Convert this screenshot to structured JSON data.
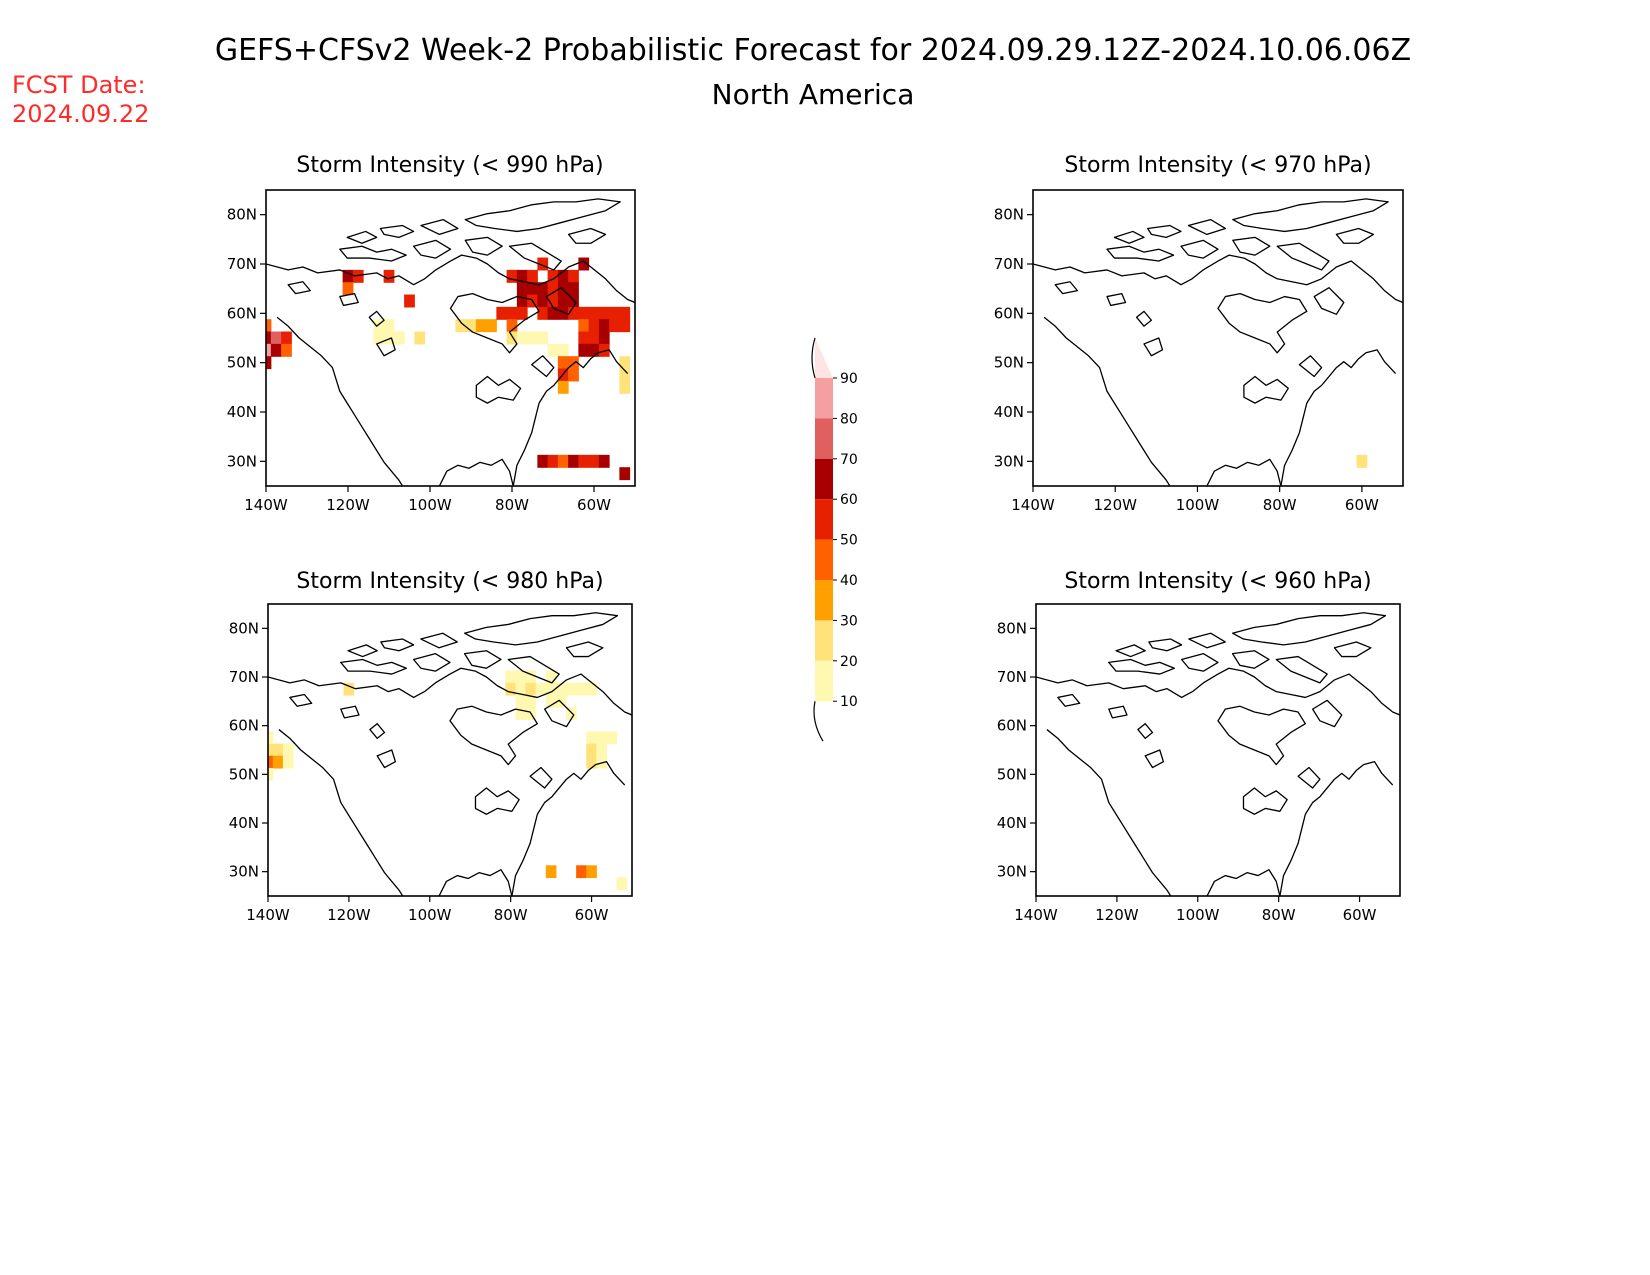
{
  "header": {
    "title": "GEFS+CFSv2 Week-2 Probabilistic Forecast for 2024.09.29.12Z-2024.10.06.06Z",
    "subtitle": "North America",
    "fcst_label": "FCST Date:",
    "fcst_date": "2024.09.22"
  },
  "colors": {
    "fcst_text": "#ff2a2a",
    "levels": [
      "#fff8b0",
      "#ffe27a",
      "#ffa000",
      "#ff6000",
      "#e62000",
      "#a80000",
      "#e06060",
      "#f4a0a0",
      "#ffe4e4"
    ]
  },
  "colorbar": {
    "ticks": [
      "10",
      "20",
      "30",
      "40",
      "50",
      "60",
      "70",
      "80",
      "90"
    ]
  },
  "axes": {
    "lon_ticks": [
      "140W",
      "120W",
      "100W",
      "80W",
      "60W"
    ],
    "lat_ticks": [
      "30N",
      "40N",
      "50N",
      "60N",
      "70N",
      "80N"
    ],
    "lon_range": [
      -140,
      -50
    ],
    "lat_range": [
      25,
      85
    ]
  },
  "panels": [
    {
      "id": "p990",
      "title": "Storm Intensity (< 990 hPa)",
      "cells": [
        {
          "lon": -140,
          "lat": 57.5,
          "p": 40
        },
        {
          "lon": -140,
          "lat": 55,
          "p": 60
        },
        {
          "lon": -140,
          "lat": 52.5,
          "p": 80
        },
        {
          "lon": -140,
          "lat": 50,
          "p": 60
        },
        {
          "lon": -137.5,
          "lat": 55,
          "p": 70
        },
        {
          "lon": -137.5,
          "lat": 52.5,
          "p": 60
        },
        {
          "lon": -135,
          "lat": 55,
          "p": 50
        },
        {
          "lon": -135,
          "lat": 52.5,
          "p": 40
        },
        {
          "lon": -120,
          "lat": 67.5,
          "p": 60
        },
        {
          "lon": -117.5,
          "lat": 67.5,
          "p": 50
        },
        {
          "lon": -120,
          "lat": 65,
          "p": 40
        },
        {
          "lon": -110,
          "lat": 67.5,
          "p": 50
        },
        {
          "lon": -105,
          "lat": 62.5,
          "p": 50
        },
        {
          "lon": -112.5,
          "lat": 57.5,
          "p": 10
        },
        {
          "lon": -110,
          "lat": 57.5,
          "p": 10
        },
        {
          "lon": -112.5,
          "lat": 55,
          "p": 10
        },
        {
          "lon": -110,
          "lat": 55,
          "p": 10
        },
        {
          "lon": -107.5,
          "lat": 55,
          "p": 10
        },
        {
          "lon": -102.5,
          "lat": 55,
          "p": 20
        },
        {
          "lon": -92.5,
          "lat": 57.5,
          "p": 20
        },
        {
          "lon": -90,
          "lat": 57.5,
          "p": 20
        },
        {
          "lon": -87.5,
          "lat": 57.5,
          "p": 30
        },
        {
          "lon": -85,
          "lat": 57.5,
          "p": 30
        },
        {
          "lon": -82.5,
          "lat": 60,
          "p": 50
        },
        {
          "lon": -80,
          "lat": 60,
          "p": 50
        },
        {
          "lon": -80,
          "lat": 57.5,
          "p": 40
        },
        {
          "lon": -80,
          "lat": 55,
          "p": 20
        },
        {
          "lon": -77.5,
          "lat": 55,
          "p": 10
        },
        {
          "lon": -75,
          "lat": 55,
          "p": 10
        },
        {
          "lon": -72.5,
          "lat": 55,
          "p": 10
        },
        {
          "lon": -70,
          "lat": 52.5,
          "p": 10
        },
        {
          "lon": -67.5,
          "lat": 52.5,
          "p": 10
        },
        {
          "lon": -80,
          "lat": 67.5,
          "p": 50
        },
        {
          "lon": -77.5,
          "lat": 67.5,
          "p": 60
        },
        {
          "lon": -75,
          "lat": 67.5,
          "p": 50
        },
        {
          "lon": -72.5,
          "lat": 70,
          "p": 50
        },
        {
          "lon": -70,
          "lat": 67.5,
          "p": 50
        },
        {
          "lon": -67.5,
          "lat": 67.5,
          "p": 60
        },
        {
          "lon": -65,
          "lat": 67.5,
          "p": 50
        },
        {
          "lon": -62.5,
          "lat": 70,
          "p": 60
        },
        {
          "lon": -77.5,
          "lat": 65,
          "p": 60
        },
        {
          "lon": -75,
          "lat": 65,
          "p": 60
        },
        {
          "lon": -72.5,
          "lat": 65,
          "p": 60
        },
        {
          "lon": -70,
          "lat": 65,
          "p": 50
        },
        {
          "lon": -67.5,
          "lat": 65,
          "p": 60
        },
        {
          "lon": -65,
          "lat": 65,
          "p": 60
        },
        {
          "lon": -77.5,
          "lat": 62.5,
          "p": 60
        },
        {
          "lon": -75,
          "lat": 62.5,
          "p": 50
        },
        {
          "lon": -72.5,
          "lat": 62.5,
          "p": 60
        },
        {
          "lon": -70,
          "lat": 62.5,
          "p": 50
        },
        {
          "lon": -67.5,
          "lat": 62.5,
          "p": 60
        },
        {
          "lon": -65,
          "lat": 62.5,
          "p": 60
        },
        {
          "lon": -77.5,
          "lat": 60,
          "p": 50
        },
        {
          "lon": -72.5,
          "lat": 60,
          "p": 50
        },
        {
          "lon": -70,
          "lat": 60,
          "p": 60
        },
        {
          "lon": -67.5,
          "lat": 60,
          "p": 60
        },
        {
          "lon": -65,
          "lat": 60,
          "p": 50
        },
        {
          "lon": -62.5,
          "lat": 60,
          "p": 50
        },
        {
          "lon": -60,
          "lat": 60,
          "p": 50
        },
        {
          "lon": -57.5,
          "lat": 60,
          "p": 50
        },
        {
          "lon": -55,
          "lat": 60,
          "p": 50
        },
        {
          "lon": -52.5,
          "lat": 60,
          "p": 50
        },
        {
          "lon": -62.5,
          "lat": 57.5,
          "p": 40
        },
        {
          "lon": -60,
          "lat": 57.5,
          "p": 50
        },
        {
          "lon": -57.5,
          "lat": 57.5,
          "p": 60
        },
        {
          "lon": -55,
          "lat": 57.5,
          "p": 50
        },
        {
          "lon": -52.5,
          "lat": 57.5,
          "p": 50
        },
        {
          "lon": -62.5,
          "lat": 55,
          "p": 50
        },
        {
          "lon": -60,
          "lat": 55,
          "p": 50
        },
        {
          "lon": -57.5,
          "lat": 55,
          "p": 60
        },
        {
          "lon": -62.5,
          "lat": 52.5,
          "p": 60
        },
        {
          "lon": -60,
          "lat": 52.5,
          "p": 60
        },
        {
          "lon": -57.5,
          "lat": 52.5,
          "p": 50
        },
        {
          "lon": -67.5,
          "lat": 50,
          "p": 40
        },
        {
          "lon": -65,
          "lat": 50,
          "p": 40
        },
        {
          "lon": -67.5,
          "lat": 47.5,
          "p": 50
        },
        {
          "lon": -65,
          "lat": 47.5,
          "p": 40
        },
        {
          "lon": -67.5,
          "lat": 45,
          "p": 30
        },
        {
          "lon": -52.5,
          "lat": 50,
          "p": 20
        },
        {
          "lon": -52.5,
          "lat": 47.5,
          "p": 20
        },
        {
          "lon": -52.5,
          "lat": 45,
          "p": 20
        },
        {
          "lon": -72.5,
          "lat": 30,
          "p": 60
        },
        {
          "lon": -70,
          "lat": 30,
          "p": 50
        },
        {
          "lon": -67.5,
          "lat": 30,
          "p": 40
        },
        {
          "lon": -65,
          "lat": 30,
          "p": 60
        },
        {
          "lon": -62.5,
          "lat": 30,
          "p": 50
        },
        {
          "lon": -60,
          "lat": 30,
          "p": 50
        },
        {
          "lon": -57.5,
          "lat": 30,
          "p": 60
        },
        {
          "lon": -52.5,
          "lat": 27.5,
          "p": 60
        }
      ]
    },
    {
      "id": "p970",
      "title": "Storm Intensity (< 970 hPa)",
      "cells": [
        {
          "lon": -60,
          "lat": 30,
          "p": 20
        }
      ]
    },
    {
      "id": "p980",
      "title": "Storm Intensity (< 980 hPa)",
      "cells": [
        {
          "lon": -140,
          "lat": 55,
          "p": 20
        },
        {
          "lon": -140,
          "lat": 52.5,
          "p": 40
        },
        {
          "lon": -137.5,
          "lat": 55,
          "p": 20
        },
        {
          "lon": -137.5,
          "lat": 52.5,
          "p": 30
        },
        {
          "lon": -140,
          "lat": 50,
          "p": 10
        },
        {
          "lon": -135,
          "lat": 55,
          "p": 10
        },
        {
          "lon": -135,
          "lat": 52.5,
          "p": 10
        },
        {
          "lon": -140,
          "lat": 57.5,
          "p": 10
        },
        {
          "lon": -120,
          "lat": 67.5,
          "p": 20
        },
        {
          "lon": -80,
          "lat": 70,
          "p": 10
        },
        {
          "lon": -77.5,
          "lat": 70,
          "p": 10
        },
        {
          "lon": -75,
          "lat": 70,
          "p": 10
        },
        {
          "lon": -70,
          "lat": 70,
          "p": 10
        },
        {
          "lon": -80,
          "lat": 67.5,
          "p": 20
        },
        {
          "lon": -77.5,
          "lat": 67.5,
          "p": 10
        },
        {
          "lon": -75,
          "lat": 67.5,
          "p": 20
        },
        {
          "lon": -72.5,
          "lat": 67.5,
          "p": 10
        },
        {
          "lon": -70,
          "lat": 67.5,
          "p": 10
        },
        {
          "lon": -67.5,
          "lat": 67.5,
          "p": 10
        },
        {
          "lon": -65,
          "lat": 67.5,
          "p": 10
        },
        {
          "lon": -62.5,
          "lat": 67.5,
          "p": 10
        },
        {
          "lon": -60,
          "lat": 67.5,
          "p": 10
        },
        {
          "lon": -77.5,
          "lat": 65,
          "p": 10
        },
        {
          "lon": -75,
          "lat": 65,
          "p": 10
        },
        {
          "lon": -70,
          "lat": 65,
          "p": 10
        },
        {
          "lon": -67.5,
          "lat": 65,
          "p": 10
        },
        {
          "lon": -77.5,
          "lat": 62.5,
          "p": 10
        },
        {
          "lon": -75,
          "lat": 62.5,
          "p": 10
        },
        {
          "lon": -65,
          "lat": 62.5,
          "p": 10
        },
        {
          "lon": -60,
          "lat": 57.5,
          "p": 10
        },
        {
          "lon": -57.5,
          "lat": 57.5,
          "p": 10
        },
        {
          "lon": -55,
          "lat": 57.5,
          "p": 10
        },
        {
          "lon": -60,
          "lat": 55,
          "p": 20
        },
        {
          "lon": -57.5,
          "lat": 55,
          "p": 10
        },
        {
          "lon": -60,
          "lat": 52.5,
          "p": 20
        },
        {
          "lon": -57.5,
          "lat": 52.5,
          "p": 10
        },
        {
          "lon": -70,
          "lat": 30,
          "p": 30
        },
        {
          "lon": -62.5,
          "lat": 30,
          "p": 40
        },
        {
          "lon": -60,
          "lat": 30,
          "p": 30
        },
        {
          "lon": -52.5,
          "lat": 27.5,
          "p": 10
        }
      ]
    },
    {
      "id": "p960",
      "title": "Storm Intensity (< 960 hPa)",
      "cells": []
    }
  ]
}
